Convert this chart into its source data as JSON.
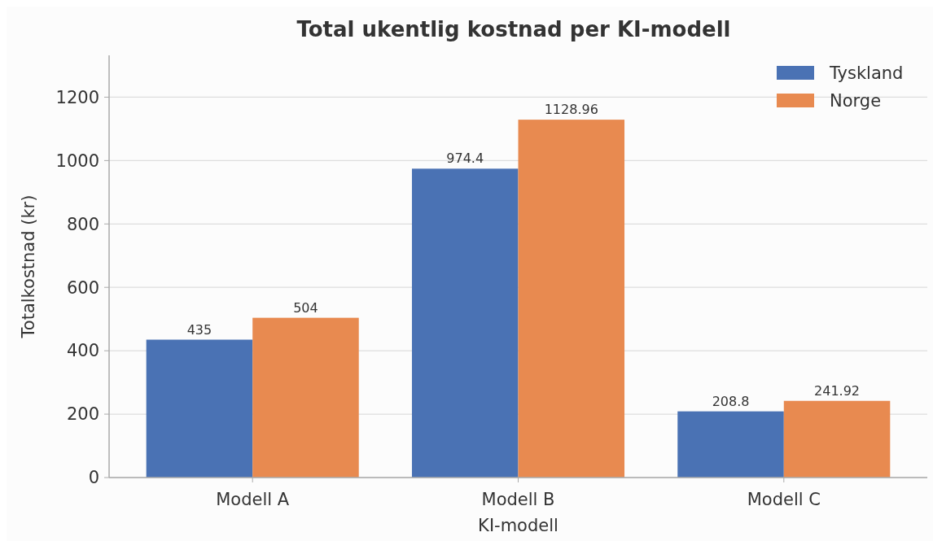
{
  "chart_data": {
    "type": "bar",
    "title": "Total ukentlig kostnad per KI-modell",
    "xlabel": "KI-modell",
    "ylabel": "Totalkostnad (kr)",
    "categories": [
      "Modell A",
      "Modell B",
      "Modell C"
    ],
    "series": [
      {
        "name": "Tyskland",
        "color": "#4a72b4",
        "values": [
          435,
          974.4,
          208.8
        ]
      },
      {
        "name": "Norge",
        "color": "#e88a50",
        "values": [
          504,
          1128.96,
          241.92
        ]
      }
    ],
    "ylim": [
      0,
      1332
    ],
    "yticks": [
      0,
      200,
      400,
      600,
      800,
      1000,
      1200
    ],
    "grid": "y",
    "legend": "top right",
    "data_labels": true
  }
}
